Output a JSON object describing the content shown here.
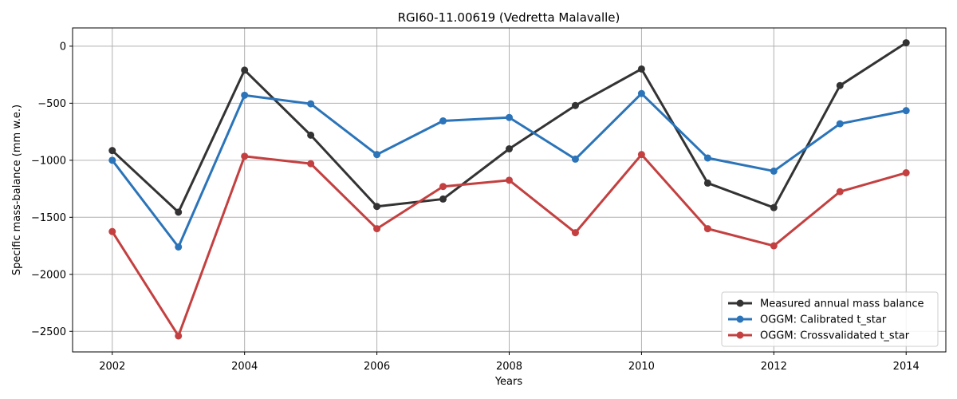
{
  "chart_data": {
    "type": "line",
    "title": "RGI60-11.00619 (Vedretta Malavalle)",
    "xlabel": "Years",
    "ylabel": "Specific mass-balance (mm w.e.)",
    "xlim": [
      2001.4,
      2014.6
    ],
    "ylim": [
      -2680,
      160
    ],
    "xticks": [
      2002,
      2004,
      2006,
      2008,
      2010,
      2012,
      2014
    ],
    "yticks": [
      0,
      -500,
      -1000,
      -1500,
      -2000,
      -2500
    ],
    "grid": true,
    "legend_position": "lower-right",
    "x": [
      2002,
      2003,
      2004,
      2005,
      2006,
      2007,
      2008,
      2009,
      2010,
      2011,
      2012,
      2013,
      2014
    ],
    "series": [
      {
        "name": "Measured annual mass balance",
        "color": "#333333",
        "values": [
          -915,
          -1455,
          -210,
          -780,
          -1405,
          -1340,
          -900,
          -520,
          -200,
          -1200,
          -1415,
          -345,
          30
        ]
      },
      {
        "name": "OGGM: Calibrated t_star",
        "color": "#2b74b9",
        "values": [
          -1000,
          -1760,
          -430,
          -505,
          -950,
          -655,
          -625,
          -990,
          -415,
          -980,
          -1095,
          -680,
          -565
        ]
      },
      {
        "name": "OGGM: Crossvalidated t_star",
        "color": "#c44040",
        "values": [
          -1625,
          -2540,
          -965,
          -1030,
          -1600,
          -1230,
          -1175,
          -1635,
          -950,
          -1600,
          -1750,
          -1275,
          -1110
        ]
      }
    ]
  }
}
